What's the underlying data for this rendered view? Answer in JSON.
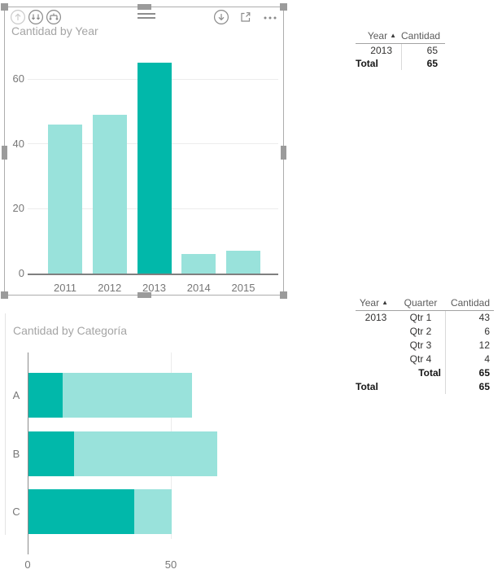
{
  "colors": {
    "highlight": "#01B8AA",
    "dim": "#99E2DB",
    "axis_label": "#777777",
    "title_gray": "#A5A5A5"
  },
  "visual_header": {
    "icons": [
      {
        "name": "drill-up-icon",
        "disabled": true
      },
      {
        "name": "drill-down-double-icon",
        "disabled": false
      },
      {
        "name": "expand-all-icon",
        "disabled": false
      },
      {
        "name": "drill-down-toggle-icon",
        "disabled": false
      },
      {
        "name": "focus-mode-icon",
        "disabled": false
      },
      {
        "name": "more-options-icon",
        "disabled": false
      }
    ]
  },
  "chart_data": [
    {
      "type": "bar",
      "orientation": "vertical",
      "title": "Cantidad by Year",
      "categories": [
        "2011",
        "2012",
        "2013",
        "2014",
        "2015"
      ],
      "values": [
        46,
        49,
        65,
        6,
        7
      ],
      "highlighted_category": "2013",
      "yticks": [
        0,
        20,
        40,
        60
      ],
      "ylim": [
        0,
        65
      ],
      "grid": true,
      "xlabel": "",
      "ylabel": ""
    },
    {
      "type": "bar",
      "orientation": "horizontal",
      "title": "Cantidad by Categoría",
      "categories": [
        "A",
        "B",
        "C"
      ],
      "series": [
        {
          "name": "total",
          "values": [
            57,
            66,
            50
          ]
        },
        {
          "name": "highlighted",
          "values": [
            12,
            16,
            37
          ]
        }
      ],
      "xticks": [
        0,
        50
      ],
      "xlim": [
        0,
        88
      ],
      "grid": true,
      "xlabel": "",
      "ylabel": ""
    }
  ],
  "table_year": {
    "columns": [
      "Year",
      "Cantidad"
    ],
    "sort_column": "Year",
    "sort_icon": "▲",
    "rows": [
      [
        "2013",
        "65"
      ]
    ],
    "total_row": [
      "Total",
      "65"
    ]
  },
  "matrix_year_quarter": {
    "columns": [
      "Year",
      "Quarter",
      "Cantidad"
    ],
    "sort_column": "Year",
    "sort_icon": "▲",
    "rows": [
      [
        "2013",
        "Qtr 1",
        "43"
      ],
      [
        "",
        "Qtr 2",
        "6"
      ],
      [
        "",
        "Qtr 3",
        "12"
      ],
      [
        "",
        "Qtr 4",
        "4"
      ],
      [
        "",
        "Total",
        "65"
      ],
      [
        "Total",
        "",
        "65"
      ]
    ]
  }
}
